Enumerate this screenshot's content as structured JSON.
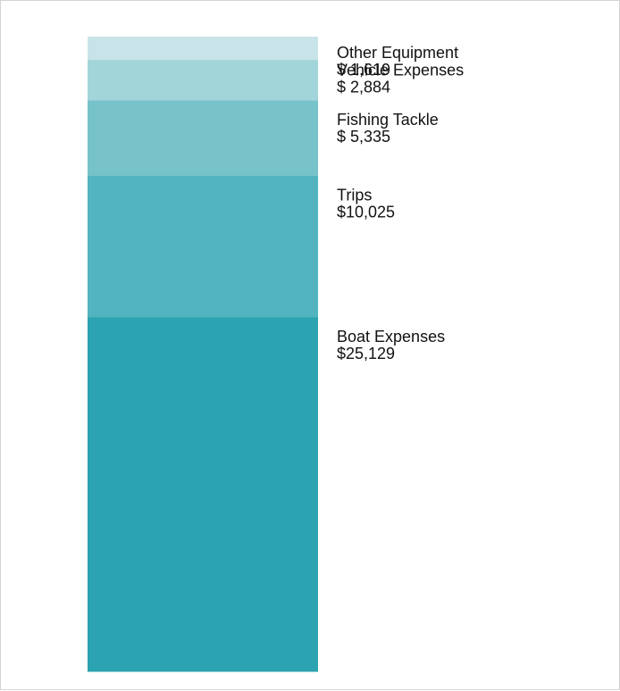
{
  "chart_data": {
    "type": "bar",
    "stacked": true,
    "orientation": "vertical",
    "categories": [
      "Boat Expenses",
      "Trips",
      "Fishing Tackle",
      "Vehicle Expenses",
      "Other Equipment"
    ],
    "value_labels": [
      "$25,129",
      "$10,025",
      "$ 5,335",
      "$ 2,884",
      "$ 1,619"
    ],
    "values": [
      25129,
      10025,
      5335,
      2884,
      1619
    ],
    "colors": [
      "#2ba3b1",
      "#52b4bf",
      "#78c2ca",
      "#a1d5d9",
      "#c8e4e8"
    ],
    "title": "",
    "xlabel": "",
    "ylabel": "",
    "legend": "none",
    "grid": false
  }
}
